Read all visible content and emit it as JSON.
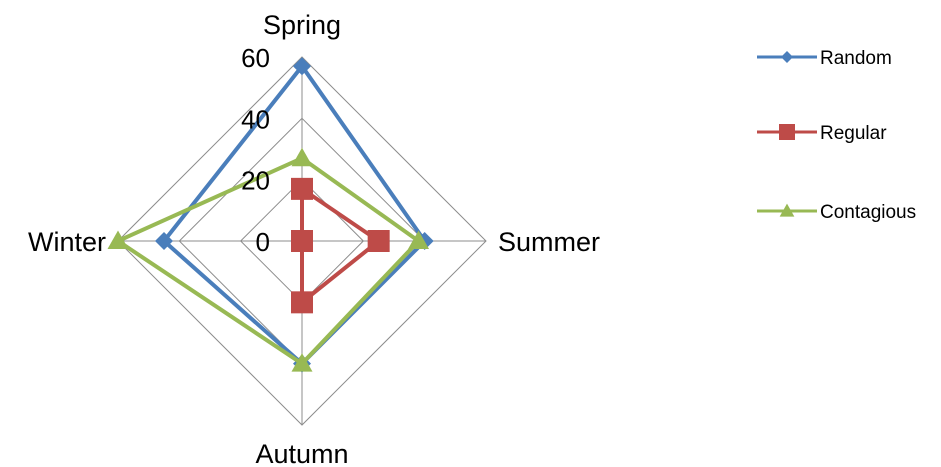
{
  "chart_data": {
    "type": "radar",
    "categories": [
      "Spring",
      "Summer",
      "Autumn",
      "Winter"
    ],
    "series": [
      {
        "name": "Random",
        "values": [
          57,
          40,
          40,
          45
        ],
        "color": "#4a7ebb",
        "marker": "diamond"
      },
      {
        "name": "Regular",
        "values": [
          17,
          25,
          20,
          0
        ],
        "color": "#be4b48",
        "marker": "square"
      },
      {
        "name": "Contagious",
        "values": [
          27,
          38,
          40,
          60
        ],
        "color": "#98b954",
        "marker": "triangle"
      }
    ],
    "rlim": [
      0,
      60
    ],
    "ticks": [
      "0",
      "20",
      "40",
      "60"
    ],
    "grid": true,
    "legend": "right"
  }
}
